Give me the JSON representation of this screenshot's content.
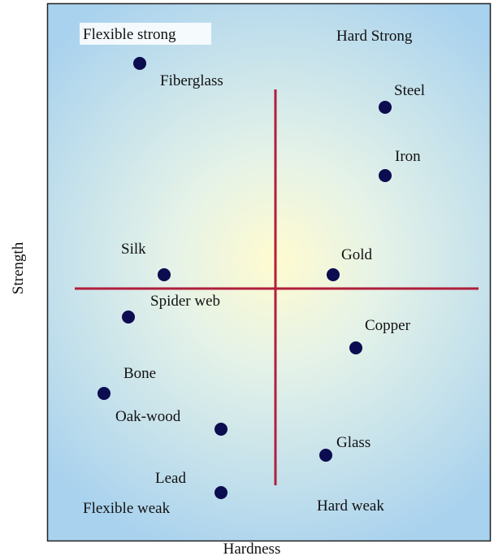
{
  "quadrants": {
    "top_left": "Flexible strong",
    "top_right": "Hard Strong",
    "bottom_left": "Flexible weak",
    "bottom_right": "Hard weak"
  },
  "axes": {
    "x": "Hardness",
    "y": "Strength"
  },
  "nodes": [
    {
      "label": "Fiberglass"
    },
    {
      "label": "Steel"
    },
    {
      "label": "Iron"
    },
    {
      "label": "Silk"
    },
    {
      "label": "Gold"
    },
    {
      "label": "Spider web"
    },
    {
      "label": "Copper"
    },
    {
      "label": "Bone"
    },
    {
      "label": "Oak-wood"
    },
    {
      "label": "Glass"
    },
    {
      "label": "Lead"
    }
  ]
}
